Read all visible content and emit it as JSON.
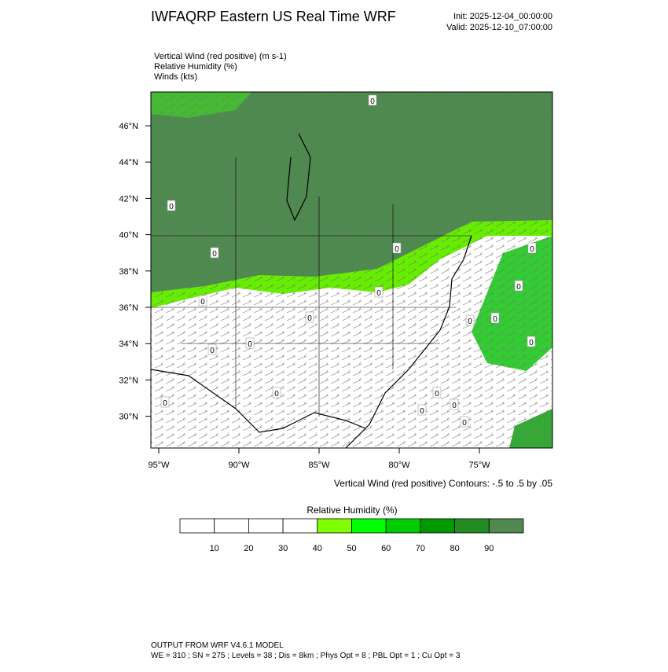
{
  "title": "IWFAQRP Eastern US Real Time WRF",
  "init": "Init: 2025-12-04_00:00:00",
  "valid": "Valid: 2025-12-10_07:00:00",
  "fields": [
    "Vertical Wind (red positive)   (m s-1)",
    "Relative Humidity   (%)",
    "Winds   (kts)"
  ],
  "lat_ticks": [
    "46°N",
    "44°N",
    "42°N",
    "40°N",
    "38°N",
    "36°N",
    "34°N",
    "32°N",
    "30°N"
  ],
  "lon_ticks": [
    "95°W",
    "90°W",
    "85°W",
    "80°W",
    "75°W"
  ],
  "contour_labels": [
    "0",
    "0",
    "0",
    "0",
    "0",
    "0",
    "0",
    "0",
    "0",
    "0",
    "0",
    "0",
    "0",
    "0",
    "0",
    "0",
    "0",
    "0",
    "0",
    "0"
  ],
  "contour_note": "Vertical Wind (red positive) Contours: -.5 to .5 by .05",
  "colorbar": {
    "title": "Relative Humidity  (%)",
    "labels": [
      10,
      20,
      30,
      40,
      50,
      60,
      70,
      80,
      90
    ],
    "colors": [
      "#ffffff",
      "#ffffff",
      "#ffffff",
      "#ffffff",
      "#80ff00",
      "#00ff00",
      "#00cc00",
      "#009900",
      "#228b22",
      "#508a50"
    ]
  },
  "footer": [
    "OUTPUT FROM WRF V4.6.1 MODEL",
    "WE = 310 ; SN = 275 ; Levels = 38 ; Dis = 8km ; Phys Opt = 8 ; PBL Opt = 1 ; Cu Opt = 3"
  ]
}
